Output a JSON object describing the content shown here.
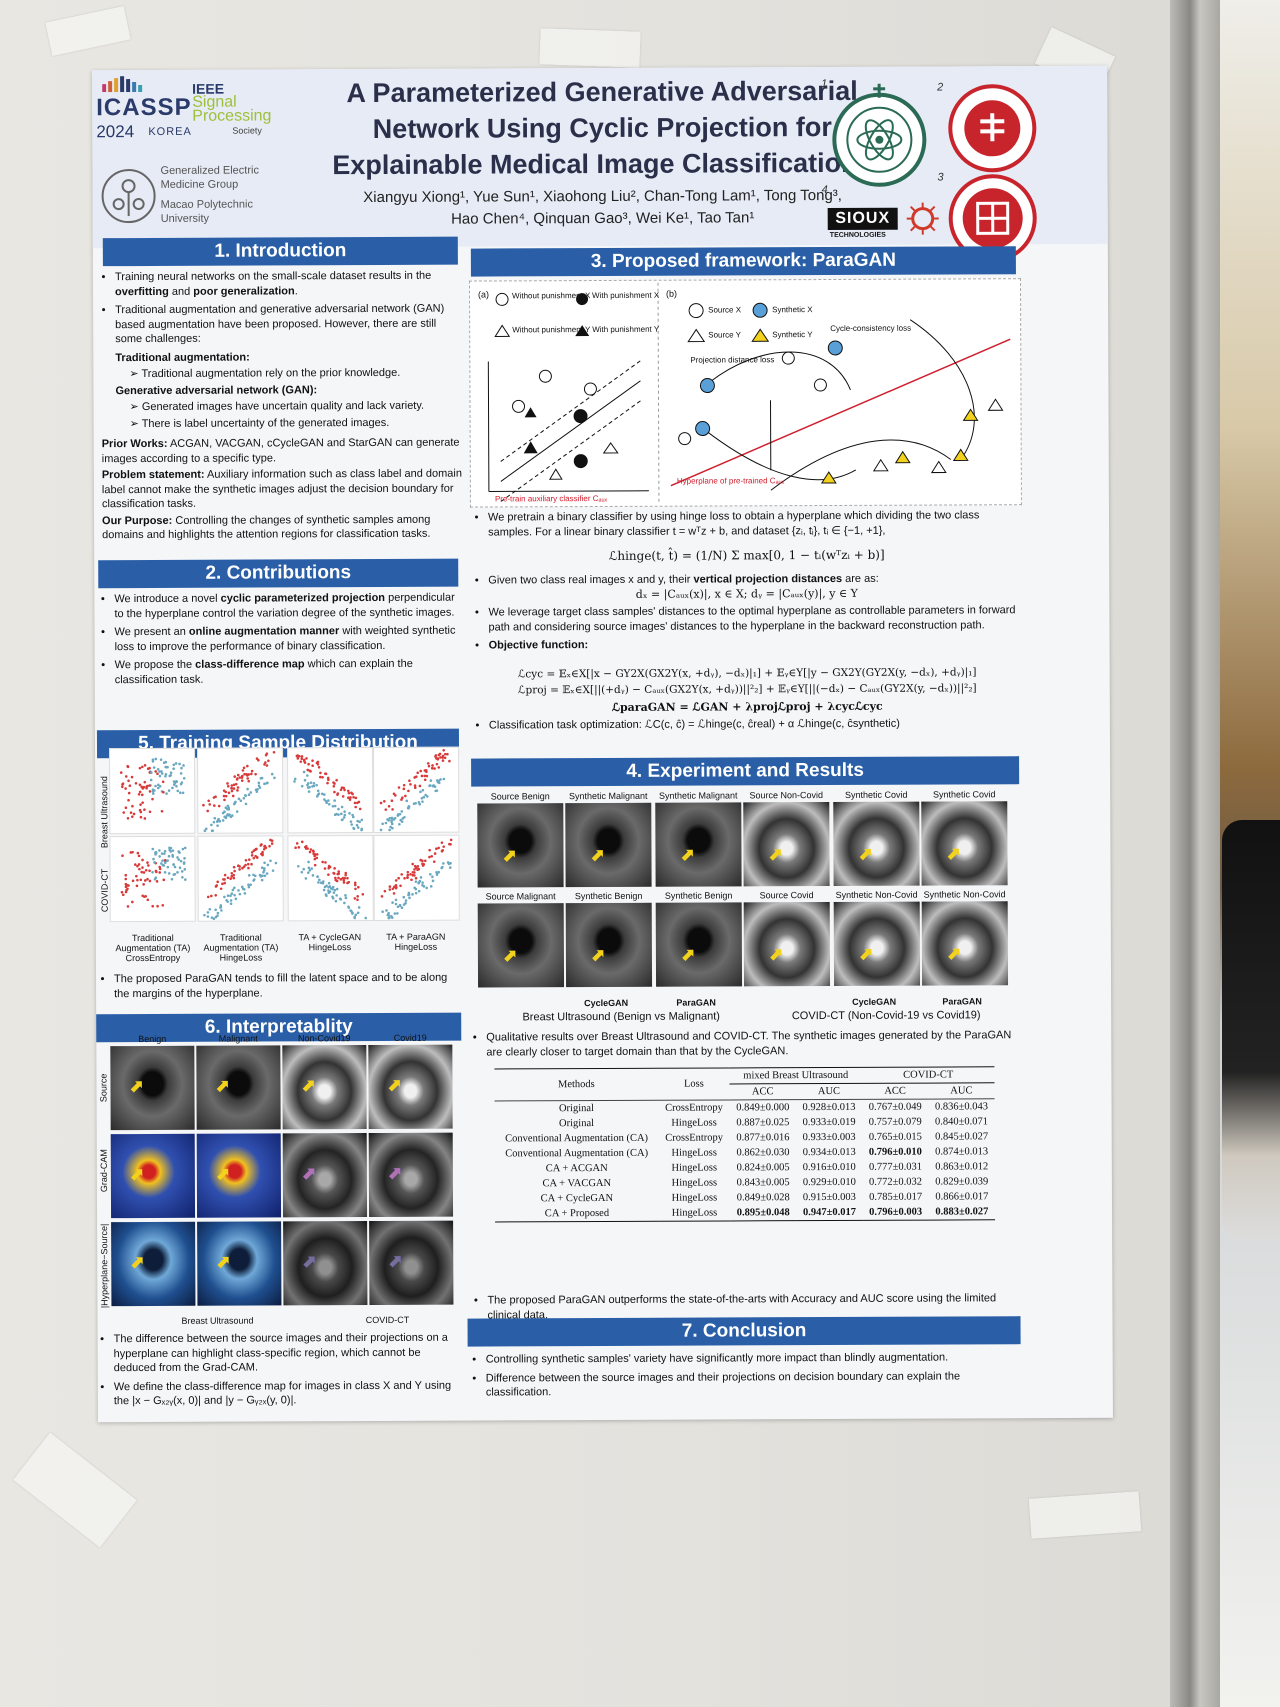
{
  "header": {
    "title_lines": [
      "A Parameterized Generative Adversarial",
      "Network Using Cyclic Projection for",
      "Explainable Medical Image Classifications"
    ],
    "authors_line1": "Xiangyu Xiong¹, Yue Sun¹, Xiaohong Liu², Chan-Tong Lam¹, Tong Tong³,",
    "authors_line2": "Hao Chen⁴, Qinquan Gao³, Wei Ke¹, Tao Tan¹",
    "logo_icassp": "ICASSP",
    "logo_year": "2024",
    "logo_korea": "KOREA",
    "logo_ieee_1": "IEEE",
    "logo_ieee_2": "Signal",
    "logo_ieee_3": "Processing",
    "logo_ieee_4": "Society",
    "group_1": "Generalized Electric",
    "group_2": "Medicine Group",
    "univ_1": "Macao Polytechnic",
    "univ_2": "University",
    "sioux": "SIOUX",
    "sioux_sub": "TECHNOLOGIES",
    "num_1": "1",
    "num_2": "2",
    "num_3": "3",
    "num_4": "4",
    "colors": {
      "section_bar": "#2a5fa8",
      "title_text": "#2b2f4a",
      "ieee_green": "#9fbf3a",
      "seal_red": "#c8242c"
    }
  },
  "intro": {
    "heading": "1. Introduction",
    "b1a": "Training neural networks on the small-scale dataset results in the ",
    "b1b": "overfitting",
    "b1c": " and ",
    "b1d": "poor generalization",
    "b1e": ".",
    "b2": "Traditional augmentation and generative adversarial network (GAN) based augmentation have been proposed. However, there are still some challenges:",
    "trad_head": "Traditional augmentation:",
    "trad_1": "Traditional augmentation rely on the prior knowledge.",
    "gan_head": "Generative adversarial network (GAN):",
    "gan_1": "Generated images have uncertain quality and lack variety.",
    "gan_2": "There is label uncertainty of the generated images.",
    "prior_head": "Prior Works:",
    "prior_text": " ACGAN, VACGAN, cCycleGAN and StarGAN can generate images according to a specific type.",
    "problem_head": "Problem statement:",
    "problem_text": " Auxiliary information such as class label and domain label cannot make the synthetic images adjust the decision boundary for classification tasks.",
    "purpose_head": "Our Purpose:",
    "purpose_text": " Controlling the changes of synthetic samples among domains and highlights the attention regions for classification tasks."
  },
  "contrib": {
    "heading": "2. Contributions",
    "c1a": "We introduce a novel ",
    "c1b": "cyclic parameterized projection",
    "c1c": " perpendicular to the hyperplane control the variation degree of the synthetic images.",
    "c2a": "We present an ",
    "c2b": "online augmentation manner",
    "c2c": " with weighted synthetic loss to improve the performance of binary classification.",
    "c3a": "We propose the ",
    "c3b": "class-difference map",
    "c3c": " which can explain the classification task."
  },
  "dist": {
    "heading": "5. Training Sample Distribution",
    "row_1": "Breast Ultrasound",
    "row_2": "COVID-CT",
    "cols": [
      "Traditional Augmentation (TA) CrossEntropy",
      "Traditional Augmentation (TA) HingeLoss",
      "TA + CycleGAN HingeLoss",
      "TA + ParaAGN HingeLoss"
    ],
    "note": "The proposed ParaGAN tends to fill the latent space and to be along the margins of the hyperplane."
  },
  "interp": {
    "heading": "6. Interpretablity",
    "cols": [
      "Benign",
      "Malignant",
      "Non-Covid19",
      "Covid19"
    ],
    "rows": [
      "Source",
      "Grad-CAM",
      "|Hyperplane−Source|"
    ],
    "cap_1": "Breast Ultrasound",
    "cap_2": "COVID-CT",
    "b1": "The difference between the source images and their projections on a hyperplane can highlight class-specific region, which cannot be deduced from the Grad-CAM.",
    "b2": "We define the class-difference map for images in class X and Y using the |x − Gₓ₂ᵧ(x, 0)| and |y − Gᵧ₂ₓ(y, 0)|."
  },
  "framework": {
    "heading": "3. Proposed framework: ParaGAN",
    "fig_a": "(a)",
    "fig_b": "(b)",
    "leg_without_x": "Without punishment X",
    "leg_with_x": "With punishment X",
    "leg_without_y": "Without punishment Y",
    "leg_with_y": "With punishment Y",
    "leg_source_x": "Source X",
    "leg_synth_x": "Synthetic X",
    "leg_source_y": "Source Y",
    "leg_synth_y": "Synthetic Y",
    "pretrain_caption": "Pre-train auxiliary classifier Cₐᵤₓ",
    "hyperplane_caption": "Hyperplane of pre-trained Cₐᵤₓ",
    "cyc_loss": "Cycle-consistency loss",
    "proj_loss": "Projection distance loss",
    "b1": "We pretrain a binary classifier by using hinge loss to obtain a hyperplane which dividing the two class samples. For a linear binary classifier t = wᵀz + b, and dataset {zᵢ, tᵢ}, tᵢ ∈ {−1, +1},",
    "eq_hinge": "ℒhinge(t, t̂) = (1/N) Σ max[0, 1 − tᵢ(wᵀzᵢ + b)]",
    "b2a": "Given two class real images x and y, their ",
    "b2b": "vertical projection distances",
    "b2c": " are as:",
    "eq_dist": "dₓ = |Cₐᵤₓ(x)|, x ∈ X;  dᵧ = |Cₐᵤₓ(y)|, y ∈ Y",
    "b3": "We leverage target class samples' distances to the optimal hyperplane as controllable parameters in forward path and considering source images' distances to the hyperplane in the backward reconstruction path.",
    "obj_head": "Objective function:",
    "eq_cyc": "ℒcyc = 𝔼ₓ∈X[|x − GY2X(GX2Y(x, +dᵧ), −dₓ)|₁] + 𝔼ᵧ∈Y[|y − GX2Y(GY2X(y, −dₓ), +dᵧ)|₁]",
    "eq_proj": "ℒproj = 𝔼ₓ∈X[||(+dᵧ) − Cₐᵤₓ(GX2Y(x, +dᵧ))||²₂] + 𝔼ᵧ∈Y[||(−dₓ) − Cₐᵤₓ(GY2X(y, −dₓ))||²₂]",
    "eq_total": "ℒparaGAN = ℒGAN + λprojℒproj + λcycℒcyc",
    "b4": "Classification task optimization: ℒC(c, ĉ) = ℒhinge(c, ĉreal) + α ℒhinge(c, ĉsynthetic)"
  },
  "experiment": {
    "heading": "4. Experiment and Results",
    "top_labels": [
      "Source Benign",
      "Synthetic Malignant",
      "Synthetic Malignant",
      "Source Non-Covid",
      "Synthetic Covid",
      "Synthetic Covid"
    ],
    "bottom_labels": [
      "Source Malignant",
      "Synthetic Benign",
      "Synthetic Benign",
      "Source Covid",
      "Synthetic Non-Covid",
      "Synthetic Non-Covid"
    ],
    "method_1": "CycleGAN",
    "method_2": "ParaGAN",
    "method_3": "CycleGAN",
    "method_4": "ParaGAN",
    "group_1": "Breast Ultrasound (Benign vs Malignant)",
    "group_2": "COVID-CT (Non-Covid-19 vs Covid19)",
    "note_1": "Qualitative results over Breast Ultrasound and COVID-CT. The synthetic images generated by the ParaGAN are clearly closer to target domain than that by the CycleGAN.",
    "table": {
      "h_methods": "Methods",
      "h_loss": "Loss",
      "h_group1": "mixed Breast Ultrasound",
      "h_group2": "COVID-CT",
      "h_acc": "ACC",
      "h_auc": "AUC",
      "rows": [
        [
          "Original",
          "CrossEntropy",
          "0.849±0.000",
          "0.928±0.013",
          "0.767±0.049",
          "0.836±0.043"
        ],
        [
          "Original",
          "HingeLoss",
          "0.887±0.025",
          "0.933±0.019",
          "0.757±0.079",
          "0.840±0.071"
        ],
        [
          "Conventional Augmentation (CA)",
          "CrossEntropy",
          "0.877±0.016",
          "0.933±0.003",
          "0.765±0.015",
          "0.845±0.027"
        ],
        [
          "Conventional Augmentation (CA)",
          "HingeLoss",
          "0.862±0.030",
          "0.934±0.013",
          "0.796±0.010",
          "0.874±0.013"
        ],
        [
          "CA + ACGAN",
          "HingeLoss",
          "0.824±0.005",
          "0.916±0.010",
          "0.777±0.031",
          "0.863±0.012"
        ],
        [
          "CA + VACGAN",
          "HingeLoss",
          "0.843±0.005",
          "0.929±0.010",
          "0.772±0.032",
          "0.829±0.039"
        ],
        [
          "CA + CycleGAN",
          "HingeLoss",
          "0.849±0.028",
          "0.915±0.003",
          "0.785±0.017",
          "0.866±0.017"
        ],
        [
          "CA + Proposed",
          "HingeLoss",
          "0.895±0.048",
          "0.947±0.017",
          "0.796±0.003",
          "0.883±0.027"
        ]
      ]
    },
    "note_2": "The proposed ParaGAN outperforms the state-of-the-arts with Accuracy and AUC score using the limited clinical data."
  },
  "conclusion": {
    "heading": "7. Conclusion",
    "b1": "Controlling synthetic samples' variety have significantly more impact than blindly augmentation.",
    "b2": "Difference between the source images and their projections on decision boundary can explain the classification."
  }
}
